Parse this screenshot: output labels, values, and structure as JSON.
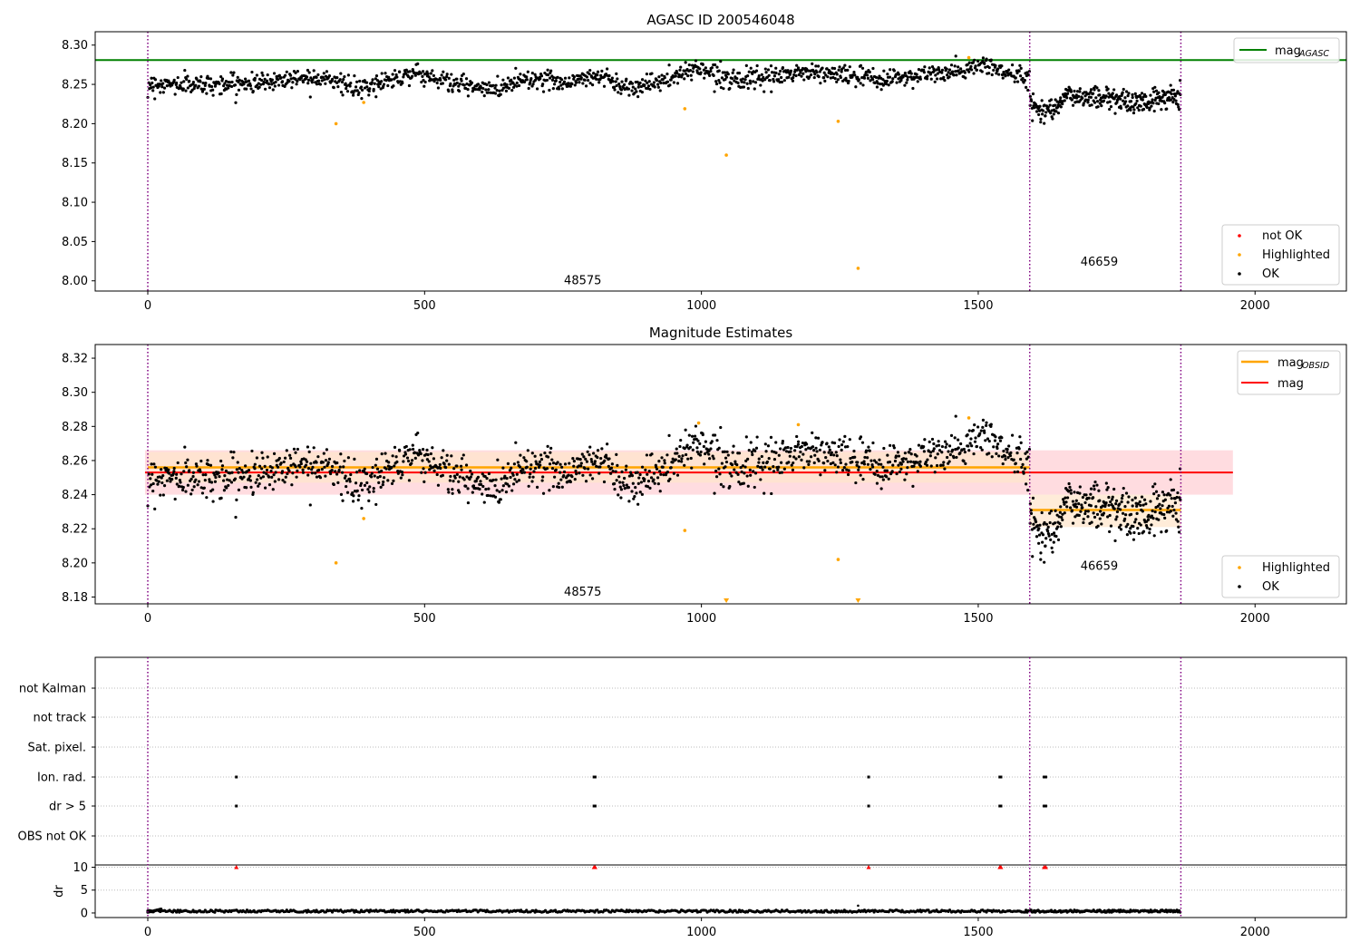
{
  "colors": {
    "ok": "#000000",
    "highlighted": "#ffa500",
    "not_ok": "#ff0000",
    "agasc_line": "#008000",
    "obsid_line": "#ffa500",
    "mag_line": "#ff0000",
    "vline": "#800080",
    "band_global": "#ffdce0",
    "band_obsid": "#ffe6cc",
    "grid": "#bbbbbb"
  },
  "chart_data": [
    {
      "id": "top",
      "type": "scatter",
      "title": "AGASC ID 200546048",
      "xlim": [
        -95,
        2165
      ],
      "ylim": [
        7.987,
        8.317
      ],
      "xticks": [
        0,
        500,
        1000,
        1500,
        2000
      ],
      "xtick_labels": [
        "0",
        "500",
        "1000",
        "1500",
        "2000"
      ],
      "yticks": [
        8.0,
        8.05,
        8.1,
        8.15,
        8.2,
        8.25,
        8.3
      ],
      "ytick_labels": [
        "8.00",
        "8.05",
        "8.10",
        "8.15",
        "8.20",
        "8.25",
        "8.30"
      ],
      "obsid_boundaries": [
        0,
        1593,
        1866
      ],
      "obsid_labels": [
        {
          "text": "48575",
          "x": 796,
          "y": 8.0
        },
        {
          "text": "46659",
          "x": 1729,
          "y": 8.024
        }
      ],
      "mag_agasc": 8.281,
      "ok_series": {
        "segments": [
          {
            "x0": 0,
            "x1": 1593,
            "n": 1300,
            "anchors": [
              [
                0,
                8.25
              ],
              [
                120,
                8.25
              ],
              [
                200,
                8.252
              ],
              [
                260,
                8.258
              ],
              [
                320,
                8.26
              ],
              [
                380,
                8.242
              ],
              [
                430,
                8.255
              ],
              [
                480,
                8.265
              ],
              [
                550,
                8.252
              ],
              [
                620,
                8.242
              ],
              [
                680,
                8.258
              ],
              [
                760,
                8.253
              ],
              [
                820,
                8.262
              ],
              [
                860,
                8.246
              ],
              [
                940,
                8.255
              ],
              [
                990,
                8.272
              ],
              [
                1040,
                8.26
              ],
              [
                1100,
                8.255
              ],
              [
                1180,
                8.266
              ],
              [
                1260,
                8.262
              ],
              [
                1320,
                8.256
              ],
              [
                1400,
                8.262
              ],
              [
                1470,
                8.266
              ],
              [
                1510,
                8.276
              ],
              [
                1560,
                8.262
              ],
              [
                1593,
                8.258
              ]
            ],
            "spread": 0.006
          },
          {
            "x0": 1593,
            "x1": 1866,
            "n": 300,
            "anchors": [
              [
                1593,
                8.228
              ],
              [
                1620,
                8.215
              ],
              [
                1660,
                8.235
              ],
              [
                1730,
                8.234
              ],
              [
                1790,
                8.226
              ],
              [
                1830,
                8.232
              ],
              [
                1866,
                8.238
              ]
            ],
            "spread": 0.007
          }
        ]
      },
      "highlighted": [
        [
          340,
          8.2
        ],
        [
          390,
          8.227
        ],
        [
          970,
          8.219
        ],
        [
          1045,
          8.16
        ],
        [
          1247,
          8.203
        ],
        [
          1283,
          8.016
        ],
        [
          1483,
          8.284
        ]
      ],
      "legend_top": {
        "entries": [
          {
            "label": "mag",
            "sub": "AGASC"
          }
        ]
      },
      "legend_bottom": {
        "entries": [
          "not OK",
          "Highlighted",
          "OK"
        ]
      }
    },
    {
      "id": "mid",
      "type": "scatter",
      "title": "Magnitude Estimates",
      "xlim": [
        -95,
        2165
      ],
      "ylim": [
        8.176,
        8.328
      ],
      "xticks": [
        0,
        500,
        1000,
        1500,
        2000
      ],
      "xtick_labels": [
        "0",
        "500",
        "1000",
        "1500",
        "2000"
      ],
      "yticks": [
        8.18,
        8.2,
        8.22,
        8.24,
        8.26,
        8.28,
        8.3,
        8.32
      ],
      "ytick_labels": [
        "8.18",
        "8.20",
        "8.22",
        "8.24",
        "8.26",
        "8.28",
        "8.30",
        "8.32"
      ],
      "obsid_boundaries": [
        0,
        1593,
        1866
      ],
      "obsid_labels": [
        {
          "text": "48575",
          "x": 796,
          "y": 8.183
        },
        {
          "text": "46659",
          "x": 1729,
          "y": 8.198
        }
      ],
      "mag_global": {
        "value": 8.253,
        "x_range": [
          -5,
          1960
        ],
        "band": [
          8.24,
          8.266
        ]
      },
      "mag_obsid": [
        {
          "value": 8.256,
          "x_range": [
            0,
            1593
          ],
          "band": [
            8.247,
            8.265
          ]
        },
        {
          "value": 8.231,
          "x_range": [
            1593,
            1866
          ],
          "band": [
            8.221,
            8.24
          ]
        }
      ],
      "highlighted": [
        [
          340,
          8.2
        ],
        [
          390,
          8.226
        ],
        [
          970,
          8.219
        ],
        [
          1247,
          8.202
        ],
        [
          995,
          8.282
        ],
        [
          1175,
          8.281
        ],
        [
          1483,
          8.285
        ]
      ],
      "highlighted_offscale": [
        [
          1045,
          8.176
        ],
        [
          1283,
          8.176
        ]
      ],
      "legend_top": {
        "entries": [
          {
            "label": "mag",
            "sub": "OBSID"
          },
          {
            "label": "mag",
            "sub": ""
          }
        ]
      },
      "legend_bottom": {
        "entries": [
          "Highlighted",
          "OK"
        ]
      }
    },
    {
      "id": "flags",
      "type": "scatter",
      "xlim": [
        -95,
        2165
      ],
      "categories": [
        "not Kalman",
        "not track",
        "Sat. pixel.",
        "Ion. rad.",
        "dr > 5",
        "OBS not OK"
      ],
      "flag_points": {
        "Ion. rad.": [
          160,
          806,
          808,
          1302,
          1539,
          1541,
          1619,
          1622
        ],
        "dr > 5": [
          160,
          806,
          808,
          1302,
          1539,
          1541,
          1619,
          1622
        ]
      },
      "obsid_boundaries": [
        0,
        1593,
        1866
      ]
    },
    {
      "id": "dr",
      "type": "scatter",
      "ylabel": "dr",
      "xlim": [
        -95,
        2165
      ],
      "ylim": [
        -1,
        10.5
      ],
      "xticks": [
        0,
        500,
        1000,
        1500,
        2000
      ],
      "xtick_labels": [
        "0",
        "500",
        "1000",
        "1500",
        "2000"
      ],
      "yticks": [
        0,
        5,
        10
      ],
      "ytick_labels": [
        "0",
        "5",
        "10"
      ],
      "obsid_boundaries": [
        0,
        1593,
        1866
      ],
      "dr_base": 0.4,
      "dr_spike": [
        1283,
        1.6
      ],
      "dr_outliers": [
        160,
        806,
        808,
        1302,
        1539,
        1541,
        1619,
        1622
      ]
    }
  ]
}
